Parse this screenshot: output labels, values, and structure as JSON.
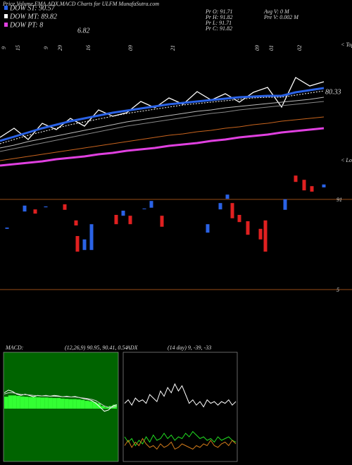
{
  "header": {
    "title": "Price,Volume,EMA,ADX,MACD Charts for ULFM MunafaSutra.com",
    "legend": [
      {
        "label": "DOW ST: 90.57",
        "color": "#2a62e6"
      },
      {
        "label": "DOW MT: 89.82",
        "color": "#ffffff"
      },
      {
        "label": "DOW PT: 8",
        "color": "#e040e0"
      }
    ],
    "pt_extra": "6.82",
    "quote_left": [
      "Pr  O: 91.71",
      "Pr  H: 91.82",
      "Pr  L: 91.71",
      "Pr  C: 91.82"
    ],
    "quote_right": [
      "Avg V: 0  M",
      "Pre  V: 0.002  M"
    ],
    "tops": "< Tops",
    "lows": "< Lows",
    "price_label": "80.33",
    "ref_top": "91",
    "ref_bottom": "5",
    "macd_label": "MACD:",
    "macd_params": "(12,26,9) 90.95, 90.41, 0.54",
    "adx_label": "ADX",
    "adx_params": "(14 day) 9, -39, -33"
  },
  "chart_data": [
    {
      "type": "line",
      "ylim": [
        80,
        94
      ],
      "categories": [
        "9",
        "15",
        null,
        "9",
        "29",
        null,
        "16",
        null,
        null,
        "09",
        null,
        null,
        "21",
        null,
        null,
        null,
        null,
        null,
        "09",
        "01",
        null,
        "02",
        null,
        null
      ],
      "series": [
        {
          "color": "#ffffff",
          "width": 1.3,
          "values": [
            84.5,
            85.8,
            84.2,
            86.5,
            85.6,
            87.2,
            86.1,
            88.4,
            87.5,
            88.0,
            89.6,
            88.7,
            90.1,
            89.2,
            91.0,
            89.8,
            90.7,
            89.5,
            90.9,
            91.6,
            88.8,
            93.0,
            91.8,
            92.4
          ]
        },
        {
          "color": "#2a62e6",
          "width": 3,
          "values": [
            84.0,
            84.6,
            85.2,
            85.8,
            86.3,
            86.8,
            87.2,
            87.6,
            88.0,
            88.3,
            88.6,
            88.9,
            89.2,
            89.4,
            89.6,
            89.8,
            90.0,
            90.2,
            90.3,
            90.4,
            90.4,
            90.9,
            91.2,
            91.5
          ]
        },
        {
          "color": "#ffffff",
          "width": 1,
          "dash": true,
          "values": [
            83.6,
            84.2,
            84.8,
            85.3,
            85.8,
            86.3,
            86.7,
            87.1,
            87.5,
            87.9,
            88.2,
            88.5,
            88.8,
            89.1,
            89.3,
            89.5,
            89.7,
            89.9,
            90.1,
            90.2,
            90.2,
            90.5,
            90.8,
            91.1
          ]
        },
        {
          "color": "#bbbbbb",
          "width": 1,
          "values": [
            83.0,
            83.4,
            83.9,
            84.3,
            84.7,
            85.1,
            85.5,
            85.9,
            86.3,
            86.7,
            87.0,
            87.3,
            87.6,
            87.9,
            88.2,
            88.4,
            88.7,
            88.9,
            89.1,
            89.3,
            89.5,
            89.7,
            89.9,
            90.2
          ]
        },
        {
          "color": "#888888",
          "width": 1,
          "values": [
            82.5,
            82.9,
            83.3,
            83.7,
            84.1,
            84.5,
            84.9,
            85.3,
            85.7,
            86.1,
            86.4,
            86.7,
            87.0,
            87.3,
            87.6,
            87.9,
            88.1,
            88.4,
            88.6,
            88.8,
            89.0,
            89.2,
            89.4,
            89.6
          ]
        },
        {
          "color": "#c8641e",
          "width": 1,
          "values": [
            81.2,
            81.5,
            81.8,
            82.1,
            82.4,
            82.7,
            83.0,
            83.3,
            83.6,
            83.9,
            84.2,
            84.5,
            84.8,
            85.0,
            85.3,
            85.5,
            85.8,
            86.0,
            86.3,
            86.5,
            86.8,
            87.0,
            87.2,
            87.4
          ]
        },
        {
          "color": "#e040e0",
          "width": 3,
          "values": [
            80.5,
            80.7,
            80.9,
            81.1,
            81.4,
            81.6,
            81.8,
            82.1,
            82.3,
            82.6,
            82.8,
            83.0,
            83.3,
            83.5,
            83.7,
            84.0,
            84.2,
            84.5,
            84.7,
            84.9,
            85.2,
            85.4,
            85.6,
            85.8
          ]
        }
      ]
    },
    {
      "type": "candlestick",
      "ylim": [
        80,
        100
      ],
      "xlim": [
        0,
        48
      ],
      "up_color": "#2a62e6",
      "down_color": "#e02020",
      "x": [
        1,
        3.5,
        5,
        6.5,
        9.2,
        10.8,
        11,
        12,
        13,
        16.5,
        17.5,
        18.5,
        20.5,
        21.5,
        23,
        29.5,
        31.3,
        32.3,
        33,
        34,
        35.2,
        37,
        37.7,
        40.5,
        42,
        43.2,
        44.3,
        46
      ],
      "open": [
        86.7,
        90.8,
        91.3,
        91.8,
        92.5,
        88.7,
        85.0,
        81.7,
        81.7,
        90.0,
        89.8,
        89.8,
        91.4,
        91.7,
        89.8,
        85.8,
        91.3,
        93.8,
        92.8,
        90.0,
        88.5,
        86.7,
        88.7,
        91.2,
        99.3,
        98.3,
        96.8,
        96.5
      ],
      "close": [
        87.0,
        92.2,
        90.3,
        92.0,
        91.2,
        87.5,
        81.3,
        84.2,
        87.8,
        87.8,
        91.0,
        87.8,
        91.5,
        93.3,
        87.2,
        87.8,
        92.8,
        94.8,
        89.2,
        88.3,
        85.3,
        84.2,
        81.3,
        93.7,
        97.8,
        95.8,
        95.5,
        97.2
      ]
    },
    {
      "type": "macd",
      "ylim": [
        -2,
        2
      ],
      "histogram": [
        0.45,
        0.5,
        0.5,
        0.48,
        0.46,
        0.45,
        0.44,
        0.44,
        0.43,
        0.42,
        0.42,
        0.41,
        0.4,
        0.4,
        0.38,
        0.37,
        0.36,
        0.36,
        0.35,
        0.33,
        0.3,
        0.28,
        0.25,
        0.2,
        0.1,
        0.05,
        0.1,
        0.15
      ],
      "series": [
        {
          "color": "#ffffff",
          "values": [
            0.6,
            0.7,
            0.65,
            0.55,
            0.5,
            0.55,
            0.5,
            0.45,
            0.5,
            0.48,
            0.5,
            0.47,
            0.5,
            0.48,
            0.45,
            0.47,
            0.44,
            0.46,
            0.42,
            0.38,
            0.35,
            0.3,
            0.2,
            0.05,
            -0.1,
            -0.05,
            0.1,
            0.15
          ]
        },
        {
          "color": "#cccccc",
          "values": [
            0.55,
            0.6,
            0.6,
            0.57,
            0.54,
            0.53,
            0.52,
            0.5,
            0.49,
            0.48,
            0.48,
            0.47,
            0.47,
            0.46,
            0.45,
            0.45,
            0.44,
            0.44,
            0.42,
            0.4,
            0.38,
            0.35,
            0.3,
            0.2,
            0.1,
            0.05,
            0.05,
            0.1
          ]
        }
      ]
    },
    {
      "type": "adx",
      "ylim": [
        0,
        60
      ],
      "series": [
        {
          "color": "#ffffff",
          "values": [
            33,
            35,
            32,
            36,
            34,
            35,
            33,
            38,
            36,
            34,
            40,
            37,
            42,
            39,
            44,
            40,
            43,
            38,
            33,
            35,
            32,
            34,
            31,
            35,
            33,
            34,
            32,
            34,
            33,
            35,
            32,
            34
          ]
        },
        {
          "color": "#22dd22",
          "values": [
            14,
            11,
            13,
            9,
            12,
            10,
            14,
            11,
            15,
            12,
            13,
            16,
            13,
            15,
            12,
            14,
            13,
            16,
            14,
            17,
            15,
            13,
            14,
            12,
            13,
            11,
            14,
            12,
            13,
            14,
            12,
            11
          ]
        },
        {
          "color": "#d07a1a",
          "values": [
            9,
            12,
            8,
            11,
            9,
            13,
            10,
            8,
            9,
            7,
            10,
            8,
            9,
            11,
            7,
            8,
            10,
            9,
            8,
            7,
            9,
            8,
            10,
            9,
            12,
            9,
            8,
            10,
            11,
            9,
            12,
            10
          ]
        }
      ]
    }
  ]
}
